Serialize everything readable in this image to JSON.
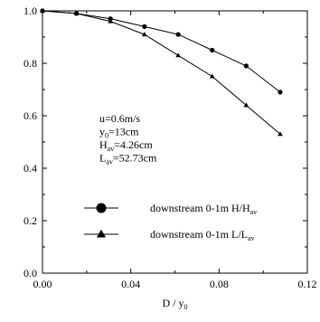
{
  "chart_data": {
    "type": "line",
    "xlabel": "D / y",
    "xlabel_sub": "0",
    "ylabel": "",
    "xlim": [
      0.0,
      0.12
    ],
    "ylim": [
      0.0,
      1.0
    ],
    "x_ticks": [
      "0.00",
      "0.04",
      "0.08",
      "0.12"
    ],
    "x_tick_values": [
      0.0,
      0.04,
      0.08,
      0.12
    ],
    "y_ticks": [
      "0.0",
      "0.2",
      "0.4",
      "0.6",
      "0.8",
      "1.0"
    ],
    "y_tick_values": [
      0.0,
      0.2,
      0.4,
      0.6,
      0.8,
      1.0
    ],
    "grid": false,
    "legend_position": "lower-center",
    "series": [
      {
        "name": "downstream 0-1m  H/H",
        "name_sub": "av",
        "marker": "circle",
        "color": "#000000",
        "x": [
          0.0,
          0.0154,
          0.0308,
          0.0462,
          0.0615,
          0.0769,
          0.0923,
          0.1077
        ],
        "values": [
          1.0,
          0.99,
          0.97,
          0.94,
          0.91,
          0.85,
          0.79,
          0.69
        ]
      },
      {
        "name": "downstream 0-1m  L/L",
        "name_sub": "av",
        "marker": "triangle",
        "color": "#000000",
        "x": [
          0.0,
          0.0154,
          0.0308,
          0.0462,
          0.0615,
          0.0769,
          0.0923,
          0.1077
        ],
        "values": [
          1.0,
          0.99,
          0.96,
          0.91,
          0.83,
          0.75,
          0.64,
          0.53
        ]
      }
    ],
    "annotations": [
      {
        "text": "u=0.6m/s",
        "sub": "",
        "rest": ""
      },
      {
        "text": "y",
        "sub": "0",
        "rest": "=13cm"
      },
      {
        "text": "H",
        "sub": "av",
        "rest": "=4.26cm"
      },
      {
        "text": "L",
        "sub": "av",
        "rest": "=52.73cm"
      }
    ]
  }
}
